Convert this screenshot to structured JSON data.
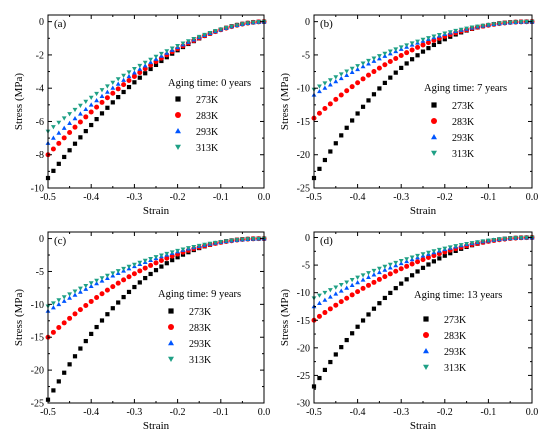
{
  "figure": {
    "colors": {
      "273K": "#000000",
      "283K": "#ff0000",
      "293K": "#0055ff",
      "313K": "#1fa085"
    },
    "markers": {
      "273K": "square",
      "283K": "circle",
      "293K": "triangle-up",
      "313K": "triangle-down"
    }
  },
  "chart_data": [
    {
      "type": "scatter",
      "panel_label": "(a)",
      "annotation": "Aging time: 0 years",
      "xlabel": "Strain",
      "ylabel": "Stress (MPa)",
      "xlim": [
        -0.5,
        0.0
      ],
      "ylim": [
        -10,
        0.4
      ],
      "xticks": [
        -0.5,
        -0.4,
        -0.3,
        -0.2,
        -0.1,
        0.0
      ],
      "xtick_labels": [
        "-0.5",
        "-0.4",
        "-0.3",
        "-0.2",
        "-0.1",
        "0.0"
      ],
      "yticks": [
        -10,
        -8,
        -6,
        -4,
        -2,
        0
      ],
      "ytick_labels": [
        "-10",
        "-8",
        "-6",
        "-4",
        "-2",
        "0"
      ],
      "legend_position": "right",
      "series": [
        {
          "name": "273K",
          "y_at_min_strain": -9.4,
          "mid": -2.6
        },
        {
          "name": "283K",
          "y_at_min_strain": -8.0,
          "mid": -2.4
        },
        {
          "name": "293K",
          "y_at_min_strain": -7.3,
          "mid": -2.25
        },
        {
          "name": "313K",
          "y_at_min_strain": -6.6,
          "mid": -2.1
        }
      ]
    },
    {
      "type": "scatter",
      "panel_label": "(b)",
      "annotation": "Aging time: 7 years",
      "xlabel": "Strain",
      "ylabel": "Stress (MPa)",
      "xlim": [
        -0.5,
        0.0
      ],
      "ylim": [
        -25,
        1
      ],
      "xticks": [
        -0.5,
        -0.4,
        -0.3,
        -0.2,
        -0.1,
        0.0
      ],
      "xtick_labels": [
        "-0.5",
        "-0.4",
        "-0.3",
        "-0.2",
        "-0.1",
        "0.0"
      ],
      "yticks": [
        -25,
        -20,
        -15,
        -10,
        -5,
        0
      ],
      "ytick_labels": [
        "-25",
        "-20",
        "-15",
        "-10",
        "-5",
        "0"
      ],
      "legend_position": "right",
      "series": [
        {
          "name": "273K",
          "y_at_min_strain": -23.5,
          "mid": -4.5
        },
        {
          "name": "283K",
          "y_at_min_strain": -14.5,
          "mid": -3.5
        },
        {
          "name": "293K",
          "y_at_min_strain": -11.0,
          "mid": -2.9
        },
        {
          "name": "313K",
          "y_at_min_strain": -10.2,
          "mid": -2.7
        }
      ]
    },
    {
      "type": "scatter",
      "panel_label": "(c)",
      "annotation": "Aging time: 9 years",
      "xlabel": "Strain",
      "ylabel": "Stress (MPa)",
      "xlim": [
        -0.5,
        0.0
      ],
      "ylim": [
        -25,
        1
      ],
      "xticks": [
        -0.5,
        -0.4,
        -0.3,
        -0.2,
        -0.1,
        0.0
      ],
      "xtick_labels": [
        "-0.5",
        "-0.4",
        "-0.3",
        "-0.2",
        "-0.1",
        "0.0"
      ],
      "yticks": [
        -25,
        -20,
        -15,
        -10,
        -5,
        0
      ],
      "ytick_labels": [
        "-25",
        "-20",
        "-15",
        "-10",
        "-5",
        "0"
      ],
      "legend_position": "right",
      "series": [
        {
          "name": "273K",
          "y_at_min_strain": -24.5,
          "mid": -4.8
        },
        {
          "name": "283K",
          "y_at_min_strain": -15.0,
          "mid": -3.7
        },
        {
          "name": "293K",
          "y_at_min_strain": -11.0,
          "mid": -3.0
        },
        {
          "name": "313K",
          "y_at_min_strain": -10.3,
          "mid": -2.8
        }
      ]
    },
    {
      "type": "scatter",
      "panel_label": "(d)",
      "annotation": "Aging time: 13 years",
      "xlabel": "Strain",
      "ylabel": "Stress (MPa)",
      "xlim": [
        -0.5,
        0.0
      ],
      "ylim": [
        -30,
        1
      ],
      "xticks": [
        -0.5,
        -0.4,
        -0.3,
        -0.2,
        -0.1,
        0.0
      ],
      "xtick_labels": [
        "-0.5",
        "-0.4",
        "-0.3",
        "-0.2",
        "-0.1",
        "0.0"
      ],
      "yticks": [
        -30,
        -25,
        -20,
        -15,
        -10,
        -5,
        0
      ],
      "ytick_labels": [
        "-30",
        "-25",
        "-20",
        "-15",
        "-10",
        "-5",
        "0"
      ],
      "legend_position": "right",
      "series": [
        {
          "name": "273K",
          "y_at_min_strain": -27.0,
          "mid": -5.5
        },
        {
          "name": "283K",
          "y_at_min_strain": -15.0,
          "mid": -4.0
        },
        {
          "name": "293K",
          "y_at_min_strain": -12.5,
          "mid": -3.3
        },
        {
          "name": "313K",
          "y_at_min_strain": -11.0,
          "mid": -3.0
        }
      ]
    }
  ]
}
